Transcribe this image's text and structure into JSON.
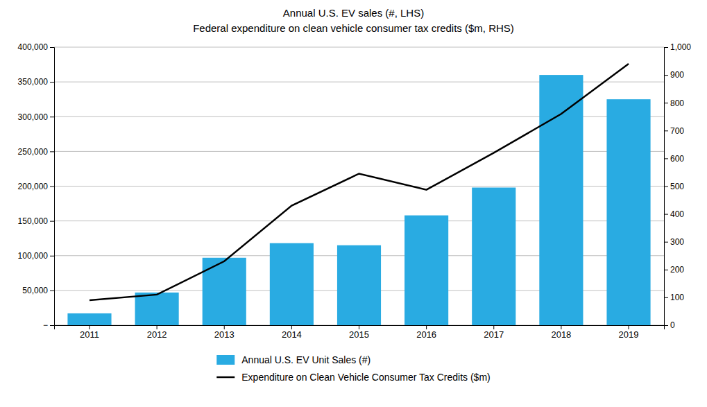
{
  "chart_data": {
    "type": "bar",
    "title": "Annual U.S. EV sales (#, LHS)",
    "subtitle": "Federal expenditure on clean vehicle consumer tax credits ($m, RHS)",
    "categories": [
      "2011",
      "2012",
      "2013",
      "2014",
      "2015",
      "2016",
      "2017",
      "2018",
      "2019"
    ],
    "series": [
      {
        "name": "Annual U.S. EV Unit Sales (#)",
        "type": "bar",
        "color": "#29ABE2",
        "values": [
          17000,
          47000,
          97000,
          118000,
          115000,
          158000,
          198000,
          360000,
          325000
        ]
      },
      {
        "name": "Expenditure on Clean Vehicle Consumer Tax Credits ($m)",
        "type": "line",
        "color": "#000000",
        "axis": "y2",
        "values": [
          90,
          110,
          230,
          430,
          545,
          487,
          620,
          760,
          940
        ]
      }
    ],
    "ylim": [
      0,
      400000
    ],
    "yticks": [
      {
        "value": 0,
        "label": "−"
      },
      {
        "value": 50000,
        "label": "50,000"
      },
      {
        "value": 100000,
        "label": "100,000"
      },
      {
        "value": 150000,
        "label": "150,000"
      },
      {
        "value": 200000,
        "label": "200,000"
      },
      {
        "value": 250000,
        "label": "250,000"
      },
      {
        "value": 300000,
        "label": "300,000"
      },
      {
        "value": 350000,
        "label": "350,000"
      },
      {
        "value": 400000,
        "label": "400,000"
      }
    ],
    "y2lim": [
      0,
      1000
    ],
    "y2ticks": [
      0,
      100,
      200,
      300,
      400,
      500,
      600,
      700,
      800,
      900,
      {
        "value": 1000,
        "label": "1,000"
      }
    ],
    "grid": true,
    "legend": "bottom"
  }
}
